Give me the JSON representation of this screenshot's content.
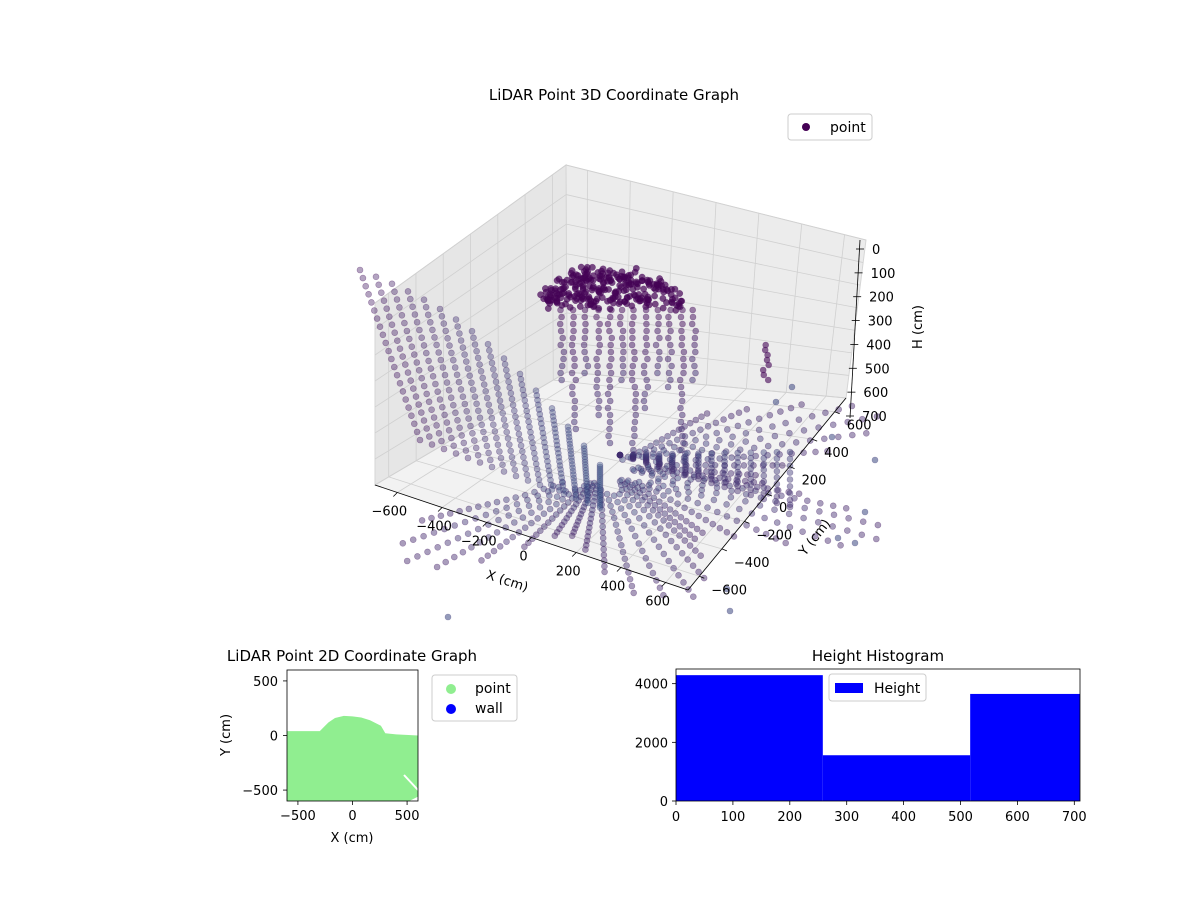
{
  "figure": {
    "background": "#ffffff"
  },
  "chart_data": [
    {
      "type": "scatter",
      "projection": "3d",
      "title": "LiDAR Point 3D Coordinate Graph",
      "xlabel": "X (cm)",
      "ylabel": "Y (cm)",
      "zlabel": "H (cm)",
      "xlim": [
        -700,
        700
      ],
      "ylim": [
        -700,
        700
      ],
      "zlim": [
        700,
        0
      ],
      "zaxis_inverted": true,
      "x_ticks": [
        "−600",
        "−400",
        "−200",
        "0",
        "200",
        "400",
        "600"
      ],
      "y_ticks": [
        "−600",
        "−400",
        "−200",
        "0",
        "200",
        "400",
        "600"
      ],
      "z_ticks": [
        "0",
        "100",
        "200",
        "300",
        "400",
        "500",
        "600",
        "700"
      ],
      "grid": true,
      "colormap": "viridis",
      "legend": {
        "position": "upper right",
        "entries": [
          {
            "label": "point",
            "color": "#440154"
          }
        ]
      },
      "series": [
        {
          "name": "point",
          "color_low": "#440154",
          "color_high": "#3b5b8c"
        }
      ]
    },
    {
      "type": "scatter",
      "title": "LiDAR Point 2D Coordinate Graph",
      "xlabel": "X (cm)",
      "ylabel": "Y (cm)",
      "xlim": [
        -600,
        600
      ],
      "ylim": [
        -600,
        600
      ],
      "x_ticks": [
        "−500",
        "0",
        "500"
      ],
      "y_ticks": [
        "500",
        "0",
        "−500"
      ],
      "legend": {
        "position": "outside right",
        "entries": [
          {
            "label": "point",
            "color": "#90ee90"
          },
          {
            "label": "wall",
            "color": "#0000ff"
          }
        ]
      },
      "series": [
        {
          "name": "point",
          "color": "#90ee90",
          "outline": [
            [
              -600,
              -600
            ],
            [
              -600,
              40
            ],
            [
              -300,
              40
            ],
            [
              -260,
              80
            ],
            [
              -220,
              120
            ],
            [
              -160,
              160
            ],
            [
              -80,
              180
            ],
            [
              0,
              175
            ],
            [
              80,
              165
            ],
            [
              160,
              140
            ],
            [
              260,
              90
            ],
            [
              300,
              20
            ],
            [
              400,
              10
            ],
            [
              600,
              0
            ],
            [
              600,
              -560
            ],
            [
              520,
              -600
            ]
          ]
        },
        {
          "name": "wall",
          "color": "#0000ff"
        }
      ]
    },
    {
      "type": "bar",
      "histogram": true,
      "title": "Height Histogram",
      "xlabel": "",
      "ylabel": "",
      "xlim": [
        0,
        710
      ],
      "ylim": [
        0,
        4500
      ],
      "x_ticks": [
        "0",
        "100",
        "200",
        "300",
        "400",
        "500",
        "600",
        "700"
      ],
      "y_ticks": [
        "0",
        "2000",
        "4000"
      ],
      "bins": [
        [
          0,
          258
        ],
        [
          258,
          517
        ],
        [
          517,
          710
        ]
      ],
      "values": [
        4290,
        1560,
        3650
      ],
      "color": "#0000ff",
      "legend": {
        "position": "upper center",
        "entries": [
          {
            "label": "Height",
            "color": "#0000ff"
          }
        ]
      }
    }
  ]
}
